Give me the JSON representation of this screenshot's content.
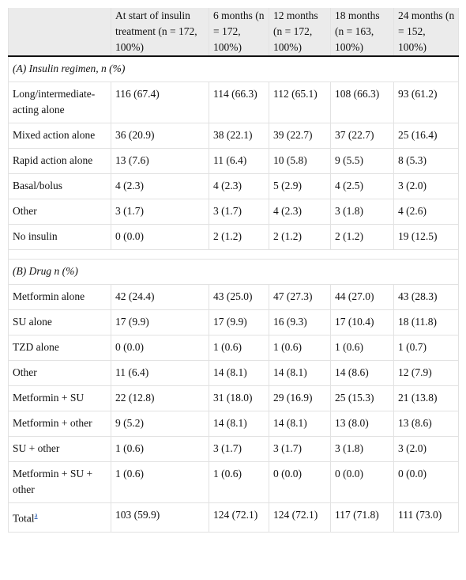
{
  "table": {
    "header": [
      "At start of insulin treatment (n = 172, 100%)",
      "6 months (n = 172, 100%)",
      "12 months (n = 172, 100%)",
      "18 months (n = 163, 100%)",
      "24 months (n = 152, 100%)"
    ],
    "sections": [
      {
        "title": "(A) Insulin regimen, n (%)",
        "rows": [
          [
            "Long/intermediate-acting alone",
            "116 (67.4)",
            "114 (66.3)",
            "112 (65.1)",
            "108 (66.3)",
            "93 (61.2)"
          ],
          [
            "Mixed action alone",
            "36 (20.9)",
            "38 (22.1)",
            "39 (22.7)",
            "37 (22.7)",
            "25 (16.4)"
          ],
          [
            "Rapid action alone",
            "13 (7.6)",
            "11 (6.4)",
            "10 (5.8)",
            "9 (5.5)",
            "8 (5.3)"
          ],
          [
            "Basal/bolus",
            "4 (2.3)",
            "4 (2.3)",
            "5 (2.9)",
            "4 (2.5)",
            "3 (2.0)"
          ],
          [
            "Other",
            "3 (1.7)",
            "3 (1.7)",
            "4 (2.3)",
            "3 (1.8)",
            "4 (2.6)"
          ],
          [
            "No insulin",
            "0 (0.0)",
            "2 (1.2)",
            "2 (1.2)",
            "2 (1.2)",
            "19 (12.5)"
          ]
        ]
      },
      {
        "title": "(B) Drug n (%)",
        "rows": [
          [
            "Metformin alone",
            "42 (24.4)",
            "43 (25.0)",
            "47 (27.3)",
            "44 (27.0)",
            "43 (28.3)"
          ],
          [
            "SU alone",
            "17 (9.9)",
            "17 (9.9)",
            "16 (9.3)",
            "17 (10.4)",
            "18 (11.8)"
          ],
          [
            "TZD alone",
            "0 (0.0)",
            "1 (0.6)",
            "1 (0.6)",
            "1 (0.6)",
            "1 (0.7)"
          ],
          [
            "Other",
            "11 (6.4)",
            "14 (8.1)",
            "14 (8.1)",
            "14 (8.6)",
            "12 (7.9)"
          ],
          [
            "Metformin + SU",
            "22 (12.8)",
            "31 (18.0)",
            "29 (16.9)",
            "25 (15.3)",
            "21 (13.8)"
          ],
          [
            "Metformin + other",
            "9 (5.2)",
            "14 (8.1)",
            "14 (8.1)",
            "13 (8.0)",
            "13 (8.6)"
          ],
          [
            "SU + other",
            "1 (0.6)",
            "3 (1.7)",
            "3 (1.7)",
            "3 (1.8)",
            "3 (2.0)"
          ],
          [
            "Metformin + SU + other",
            "1 (0.6)",
            "1 (0.6)",
            "0 (0.0)",
            "0 (0.0)",
            "0 (0.0)"
          ]
        ]
      }
    ],
    "total": {
      "label": "Total",
      "footnote": "a",
      "values": [
        "103 (59.9)",
        "124 (72.1)",
        "124 (72.1)",
        "117 (71.8)",
        "111 (73.0)"
      ]
    }
  }
}
